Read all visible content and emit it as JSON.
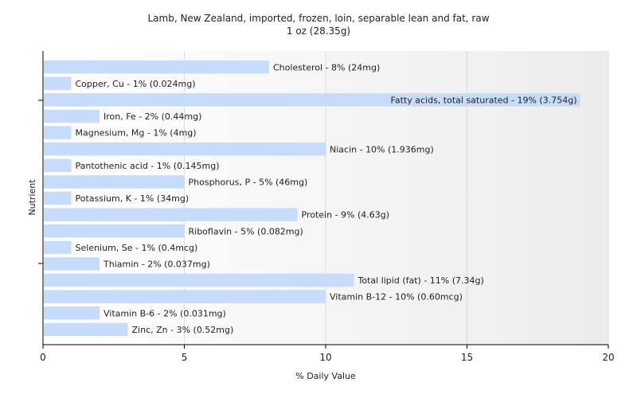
{
  "chart_data": {
    "type": "bar",
    "orientation": "horizontal",
    "title": "Lamb, New Zealand, imported, frozen, loin, separable lean and fat, raw",
    "subtitle": "1 oz (28.35g)",
    "xlabel": "% Daily Value",
    "ylabel": "Nutrient",
    "xlim": [
      0,
      20
    ],
    "xticks": [
      0,
      5,
      10,
      15,
      20
    ],
    "grid": true,
    "bar_color": "#c6dcfa",
    "categories": [
      "Cholesterol",
      "Copper, Cu",
      "Fatty acids, total saturated",
      "Iron, Fe",
      "Magnesium, Mg",
      "Niacin",
      "Pantothenic acid",
      "Phosphorus, P",
      "Potassium, K",
      "Protein",
      "Riboflavin",
      "Selenium, Se",
      "Thiamin",
      "Total lipid (fat)",
      "Vitamin B-12",
      "Vitamin B-6",
      "Zinc, Zn"
    ],
    "values": [
      8,
      1,
      19,
      2,
      1,
      10,
      1,
      5,
      1,
      9,
      5,
      1,
      2,
      11,
      10,
      2,
      3
    ],
    "labels": [
      "Cholesterol - 8% (24mg)",
      "Copper, Cu - 1% (0.024mg)",
      "Fatty acids, total saturated - 19% (3.754g)",
      "Iron, Fe - 2% (0.44mg)",
      "Magnesium, Mg - 1% (4mg)",
      "Niacin - 10% (1.936mg)",
      "Pantothenic acid - 1% (0.145mg)",
      "Phosphorus, P - 5% (46mg)",
      "Potassium, K - 1% (34mg)",
      "Protein - 9% (4.63g)",
      "Riboflavin - 5% (0.082mg)",
      "Selenium, Se - 1% (0.4mcg)",
      "Thiamin - 2% (0.037mg)",
      "Total lipid (fat) - 11% (7.34g)",
      "Vitamin B-12 - 10% (0.60mcg)",
      "Vitamin B-6 - 2% (0.031mg)",
      "Zinc, Zn - 3% (0.52mg)"
    ]
  }
}
